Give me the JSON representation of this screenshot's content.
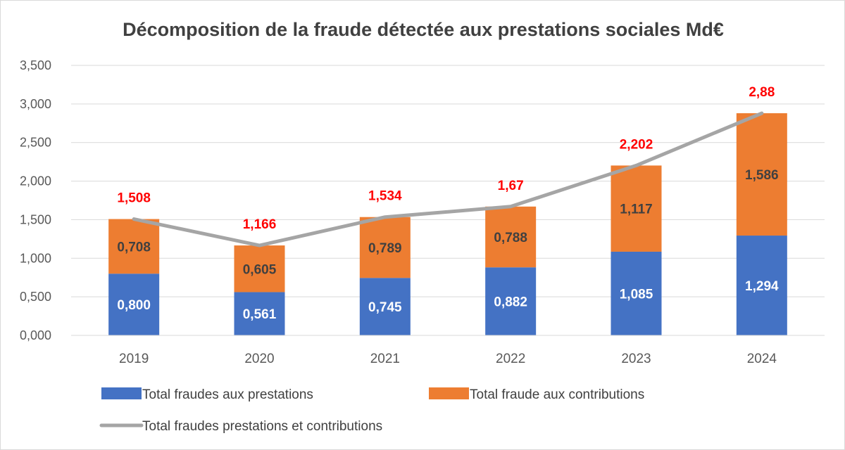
{
  "chart_data": {
    "type": "bar",
    "stacked": true,
    "title": "Décomposition de la fraude détectée aux prestations sociales Md€",
    "categories": [
      "2019",
      "2020",
      "2021",
      "2022",
      "2023",
      "2024"
    ],
    "yticks": [
      "0,000",
      "0,500",
      "1,000",
      "1,500",
      "2,000",
      "2,500",
      "3,000",
      "3,500"
    ],
    "ylim": [
      0,
      3.5
    ],
    "grid": true,
    "legend_position": "bottom",
    "series": [
      {
        "name": "Total fraudes aux prestations",
        "kind": "bar",
        "color": "#4472c4",
        "values": [
          0.8,
          0.561,
          0.745,
          0.882,
          1.085,
          1.294
        ],
        "labels": [
          "0,800",
          "0,561",
          "0,745",
          "0,882",
          "1,085",
          "1,294"
        ]
      },
      {
        "name": "Total fraude aux contributions",
        "kind": "bar",
        "color": "#ed7d31",
        "values": [
          0.708,
          0.605,
          0.789,
          0.788,
          1.117,
          1.586
        ],
        "labels": [
          "0,708",
          "0,605",
          "0,789",
          "0,788",
          "1,117",
          "1,586"
        ]
      },
      {
        "name": "Total fraudes prestations et contributions",
        "kind": "line",
        "color": "#a5a5a5",
        "values": [
          1.508,
          1.166,
          1.534,
          1.67,
          2.202,
          2.88
        ],
        "labels": [
          "1,508",
          "1,166",
          "1,534",
          "1,67",
          "2,202",
          "2,88"
        ],
        "label_color": "#ff0000"
      }
    ]
  }
}
